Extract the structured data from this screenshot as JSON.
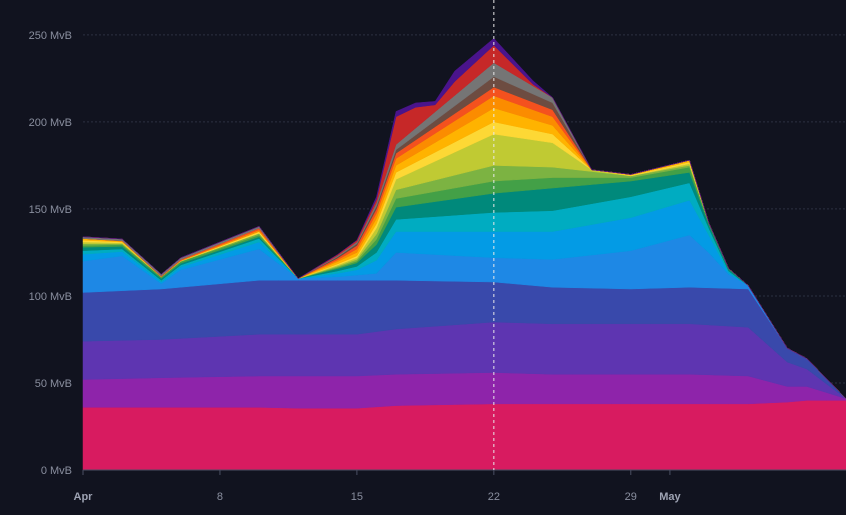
{
  "chart_data": {
    "type": "area",
    "stacked": true,
    "title": "",
    "xlabel": "",
    "ylabel": "",
    "y_unit": "MvB",
    "ylim": [
      0,
      262
    ],
    "y_ticks": [
      {
        "value": 0,
        "label": "0 MvB"
      },
      {
        "value": 50,
        "label": "50 MvB"
      },
      {
        "value": 100,
        "label": "100 MvB"
      },
      {
        "value": 150,
        "label": "150 MvB"
      },
      {
        "value": 200,
        "label": "200 MvB"
      },
      {
        "value": 250,
        "label": "250 MvB"
      }
    ],
    "x_domain": [
      "2024-04-01",
      "2024-05-10"
    ],
    "x_ticks": [
      {
        "date": "2024-04-01",
        "label": "Apr",
        "major": true
      },
      {
        "date": "2024-04-08",
        "label": "8",
        "major": false
      },
      {
        "date": "2024-04-15",
        "label": "15",
        "major": false
      },
      {
        "date": "2024-04-22",
        "label": "22",
        "major": false
      },
      {
        "date": "2024-04-29",
        "label": "29",
        "major": false
      },
      {
        "date": "2024-05-01",
        "label": "May",
        "major": true
      }
    ],
    "crosshair_date": "2024-04-22",
    "grid": true,
    "legend": "none",
    "series": [
      {
        "color": "#d81b60",
        "points": [
          [
            "2024-04-01",
            36
          ],
          [
            "2024-04-05",
            36
          ],
          [
            "2024-04-10",
            36
          ],
          [
            "2024-04-12",
            35.5
          ],
          [
            "2024-04-15",
            35.5
          ],
          [
            "2024-04-17",
            37
          ],
          [
            "2024-04-22",
            38
          ],
          [
            "2024-04-25",
            38
          ],
          [
            "2024-04-29",
            38
          ],
          [
            "2024-05-02",
            38
          ],
          [
            "2024-05-05",
            38
          ],
          [
            "2024-05-07",
            39
          ],
          [
            "2024-05-08",
            40
          ],
          [
            "2024-05-10",
            40
          ]
        ]
      },
      {
        "color": "#8e24aa",
        "points": [
          [
            "2024-04-01",
            16
          ],
          [
            "2024-04-05",
            17
          ],
          [
            "2024-04-10",
            18
          ],
          [
            "2024-04-12",
            18.5
          ],
          [
            "2024-04-15",
            18.5
          ],
          [
            "2024-04-17",
            18
          ],
          [
            "2024-04-22",
            18
          ],
          [
            "2024-04-25",
            17
          ],
          [
            "2024-04-29",
            17
          ],
          [
            "2024-05-02",
            17
          ],
          [
            "2024-05-05",
            16
          ],
          [
            "2024-05-07",
            9
          ],
          [
            "2024-05-08",
            8
          ],
          [
            "2024-05-10",
            1
          ]
        ]
      },
      {
        "color": "#5e35b1",
        "points": [
          [
            "2024-04-01",
            22
          ],
          [
            "2024-04-05",
            22
          ],
          [
            "2024-04-10",
            24
          ],
          [
            "2024-04-12",
            24
          ],
          [
            "2024-04-15",
            24
          ],
          [
            "2024-04-17",
            26
          ],
          [
            "2024-04-22",
            29
          ],
          [
            "2024-04-25",
            29
          ],
          [
            "2024-04-29",
            29
          ],
          [
            "2024-05-02",
            29
          ],
          [
            "2024-05-05",
            28
          ],
          [
            "2024-05-07",
            14
          ],
          [
            "2024-05-08",
            10
          ],
          [
            "2024-05-10",
            0
          ]
        ]
      },
      {
        "color": "#3949ab",
        "points": [
          [
            "2024-04-01",
            28
          ],
          [
            "2024-04-05",
            29
          ],
          [
            "2024-04-10",
            31
          ],
          [
            "2024-04-12",
            31
          ],
          [
            "2024-04-15",
            31
          ],
          [
            "2024-04-17",
            28
          ],
          [
            "2024-04-22",
            23
          ],
          [
            "2024-04-25",
            21
          ],
          [
            "2024-04-29",
            20
          ],
          [
            "2024-05-02",
            21
          ],
          [
            "2024-05-05",
            22
          ],
          [
            "2024-05-07",
            8
          ],
          [
            "2024-05-08",
            6
          ],
          [
            "2024-05-10",
            0
          ]
        ]
      },
      {
        "color": "#1e88e5",
        "points": [
          [
            "2024-04-01",
            18
          ],
          [
            "2024-04-03",
            20
          ],
          [
            "2024-04-05",
            3
          ],
          [
            "2024-04-06",
            10
          ],
          [
            "2024-04-08",
            14
          ],
          [
            "2024-04-10",
            18
          ],
          [
            "2024-04-12",
            1
          ],
          [
            "2024-04-14",
            2
          ],
          [
            "2024-04-15",
            3
          ],
          [
            "2024-04-16",
            4
          ],
          [
            "2024-04-17",
            16
          ],
          [
            "2024-04-22",
            14
          ],
          [
            "2024-04-25",
            16
          ],
          [
            "2024-04-29",
            22
          ],
          [
            "2024-05-02",
            30
          ],
          [
            "2024-05-03",
            20
          ],
          [
            "2024-05-04",
            8
          ],
          [
            "2024-05-05",
            2
          ],
          [
            "2024-05-07",
            0
          ],
          [
            "2024-05-10",
            0
          ]
        ]
      },
      {
        "color": "#039be5",
        "points": [
          [
            "2024-04-01",
            4
          ],
          [
            "2024-04-05",
            1
          ],
          [
            "2024-04-10",
            4
          ],
          [
            "2024-04-12",
            0
          ],
          [
            "2024-04-15",
            3
          ],
          [
            "2024-04-17",
            12
          ],
          [
            "2024-04-22",
            15
          ],
          [
            "2024-04-25",
            16
          ],
          [
            "2024-04-29",
            19
          ],
          [
            "2024-05-02",
            20
          ],
          [
            "2024-05-03",
            10
          ],
          [
            "2024-05-04",
            1
          ],
          [
            "2024-05-05",
            0
          ],
          [
            "2024-05-10",
            0
          ]
        ]
      },
      {
        "color": "#00acc1",
        "points": [
          [
            "2024-04-01",
            2
          ],
          [
            "2024-04-05",
            1
          ],
          [
            "2024-04-10",
            2
          ],
          [
            "2024-04-12",
            0
          ],
          [
            "2024-04-15",
            2
          ],
          [
            "2024-04-17",
            7
          ],
          [
            "2024-04-22",
            11
          ],
          [
            "2024-04-25",
            12
          ],
          [
            "2024-04-29",
            12
          ],
          [
            "2024-05-02",
            10
          ],
          [
            "2024-05-03",
            4
          ],
          [
            "2024-05-04",
            1
          ],
          [
            "2024-05-05",
            0
          ],
          [
            "2024-05-10",
            0
          ]
        ]
      },
      {
        "color": "#00897b",
        "points": [
          [
            "2024-04-01",
            2
          ],
          [
            "2024-04-05",
            1
          ],
          [
            "2024-04-10",
            1
          ],
          [
            "2024-04-12",
            0
          ],
          [
            "2024-04-15",
            2
          ],
          [
            "2024-04-17",
            7
          ],
          [
            "2024-04-22",
            11
          ],
          [
            "2024-04-25",
            13
          ],
          [
            "2024-04-29",
            9
          ],
          [
            "2024-05-02",
            6
          ],
          [
            "2024-05-03",
            2
          ],
          [
            "2024-05-04",
            1
          ],
          [
            "2024-05-05",
            0
          ],
          [
            "2024-05-10",
            0
          ]
        ]
      },
      {
        "color": "#43a047",
        "points": [
          [
            "2024-04-01",
            1
          ],
          [
            "2024-04-05",
            1
          ],
          [
            "2024-04-10",
            1
          ],
          [
            "2024-04-12",
            0
          ],
          [
            "2024-04-15",
            1
          ],
          [
            "2024-04-17",
            5
          ],
          [
            "2024-04-22",
            7
          ],
          [
            "2024-04-25",
            6
          ],
          [
            "2024-04-29",
            2
          ],
          [
            "2024-05-02",
            3
          ],
          [
            "2024-05-03",
            1
          ],
          [
            "2024-05-05",
            0
          ],
          [
            "2024-05-10",
            0
          ]
        ]
      },
      {
        "color": "#7cb342",
        "points": [
          [
            "2024-04-01",
            1
          ],
          [
            "2024-04-05",
            0
          ],
          [
            "2024-04-10",
            1
          ],
          [
            "2024-04-12",
            0
          ],
          [
            "2024-04-15",
            1
          ],
          [
            "2024-04-17",
            5
          ],
          [
            "2024-04-22",
            9
          ],
          [
            "2024-04-25",
            6
          ],
          [
            "2024-04-29",
            1
          ],
          [
            "2024-05-02",
            1
          ],
          [
            "2024-05-03",
            0
          ],
          [
            "2024-05-10",
            0
          ]
        ]
      },
      {
        "color": "#c0ca33",
        "points": [
          [
            "2024-04-01",
            1
          ],
          [
            "2024-04-05",
            0
          ],
          [
            "2024-04-10",
            0
          ],
          [
            "2024-04-12",
            0
          ],
          [
            "2024-04-15",
            1
          ],
          [
            "2024-04-17",
            6
          ],
          [
            "2024-04-22",
            18
          ],
          [
            "2024-04-25",
            14
          ],
          [
            "2024-04-27",
            1
          ],
          [
            "2024-04-29",
            0
          ],
          [
            "2024-05-02",
            1
          ],
          [
            "2024-05-03",
            0
          ],
          [
            "2024-05-10",
            0
          ]
        ]
      },
      {
        "color": "#fdd835",
        "points": [
          [
            "2024-04-01",
            1
          ],
          [
            "2024-04-05",
            0
          ],
          [
            "2024-04-10",
            1
          ],
          [
            "2024-04-12",
            0
          ],
          [
            "2024-04-15",
            1
          ],
          [
            "2024-04-17",
            4
          ],
          [
            "2024-04-22",
            7
          ],
          [
            "2024-04-25",
            5
          ],
          [
            "2024-04-27",
            0
          ],
          [
            "2024-05-02",
            1
          ],
          [
            "2024-05-03",
            0
          ],
          [
            "2024-05-10",
            0
          ]
        ]
      },
      {
        "color": "#ffb300",
        "points": [
          [
            "2024-04-01",
            1
          ],
          [
            "2024-04-05",
            0
          ],
          [
            "2024-04-10",
            0
          ],
          [
            "2024-04-12",
            0
          ],
          [
            "2024-04-15",
            2
          ],
          [
            "2024-04-17",
            4
          ],
          [
            "2024-04-22",
            8
          ],
          [
            "2024-04-25",
            5
          ],
          [
            "2024-04-27",
            0
          ],
          [
            "2024-05-02",
            1
          ],
          [
            "2024-05-03",
            0
          ],
          [
            "2024-05-10",
            0
          ]
        ]
      },
      {
        "color": "#fb8c00",
        "points": [
          [
            "2024-04-01",
            0
          ],
          [
            "2024-04-05",
            0
          ],
          [
            "2024-04-10",
            1
          ],
          [
            "2024-04-12",
            0
          ],
          [
            "2024-04-14",
            1
          ],
          [
            "2024-04-15",
            2
          ],
          [
            "2024-04-17",
            4
          ],
          [
            "2024-04-22",
            7
          ],
          [
            "2024-04-25",
            5
          ],
          [
            "2024-04-27",
            0
          ],
          [
            "2024-05-10",
            0
          ]
        ]
      },
      {
        "color": "#f4511e",
        "points": [
          [
            "2024-04-01",
            0
          ],
          [
            "2024-04-10",
            1
          ],
          [
            "2024-04-12",
            0
          ],
          [
            "2024-04-14",
            1
          ],
          [
            "2024-04-15",
            2
          ],
          [
            "2024-04-17",
            3
          ],
          [
            "2024-04-22",
            5
          ],
          [
            "2024-04-25",
            4
          ],
          [
            "2024-04-27",
            0
          ],
          [
            "2024-05-10",
            0
          ]
        ]
      },
      {
        "color": "#6d4c41",
        "points": [
          [
            "2024-04-01",
            0
          ],
          [
            "2024-04-12",
            0
          ],
          [
            "2024-04-15",
            1
          ],
          [
            "2024-04-17",
            2
          ],
          [
            "2024-04-22",
            6
          ],
          [
            "2024-04-25",
            4
          ],
          [
            "2024-04-27",
            0
          ],
          [
            "2024-05-10",
            0
          ]
        ]
      },
      {
        "color": "#757575",
        "points": [
          [
            "2024-04-01",
            1
          ],
          [
            "2024-04-05",
            1
          ],
          [
            "2024-04-10",
            1
          ],
          [
            "2024-04-12",
            0
          ],
          [
            "2024-04-15",
            1
          ],
          [
            "2024-04-17",
            3
          ],
          [
            "2024-04-22",
            8
          ],
          [
            "2024-04-25",
            3
          ],
          [
            "2024-04-27",
            0
          ],
          [
            "2024-05-10",
            0
          ]
        ]
      },
      {
        "color": "#c62828",
        "points": [
          [
            "2024-04-01",
            0
          ],
          [
            "2024-04-12",
            0
          ],
          [
            "2024-04-15",
            1
          ],
          [
            "2024-04-16",
            2
          ],
          [
            "2024-04-17",
            16
          ],
          [
            "2024-04-18",
            12
          ],
          [
            "2024-04-19",
            4
          ],
          [
            "2024-04-20",
            8
          ],
          [
            "2024-04-22",
            10
          ],
          [
            "2024-04-24",
            1
          ],
          [
            "2024-04-25",
            0
          ],
          [
            "2024-05-10",
            0
          ]
        ]
      },
      {
        "color": "#4a148c",
        "points": [
          [
            "2024-04-01",
            0
          ],
          [
            "2024-04-15",
            0
          ],
          [
            "2024-04-17",
            3
          ],
          [
            "2024-04-19",
            2
          ],
          [
            "2024-04-20",
            6
          ],
          [
            "2024-04-22",
            4
          ],
          [
            "2024-04-24",
            2
          ],
          [
            "2024-04-25",
            0
          ],
          [
            "2024-05-10",
            0
          ]
        ]
      }
    ]
  }
}
